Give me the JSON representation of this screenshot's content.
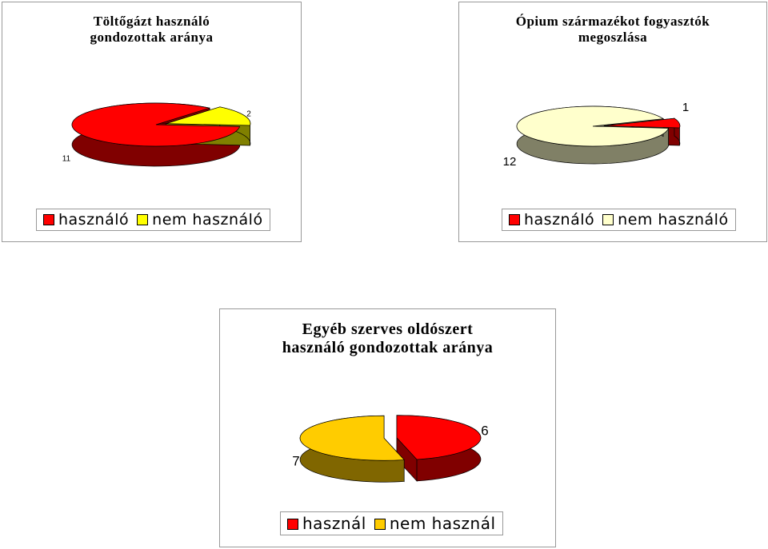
{
  "chart_data": [
    {
      "type": "pie",
      "title": "Töltőgázt használó gondozottak aránya",
      "categories": [
        "használó",
        "nem használó"
      ],
      "values": [
        11,
        2
      ],
      "colors": [
        "#ff0000",
        "#ffff00"
      ],
      "legend": "bottom"
    },
    {
      "type": "pie",
      "title": "Ópium származékot fogyasztók megoszlása",
      "categories": [
        "használó",
        "nem használó"
      ],
      "values": [
        1,
        12
      ],
      "colors": [
        "#ff0000",
        "#ffffcc"
      ],
      "legend": "bottom"
    },
    {
      "type": "pie",
      "title": "Egyéb szerves oldószert használó gondozottak aránya",
      "categories": [
        "használ",
        "nem használ"
      ],
      "values": [
        6,
        7
      ],
      "colors": [
        "#ff0000",
        "#ffcc00"
      ],
      "legend": "bottom"
    }
  ]
}
